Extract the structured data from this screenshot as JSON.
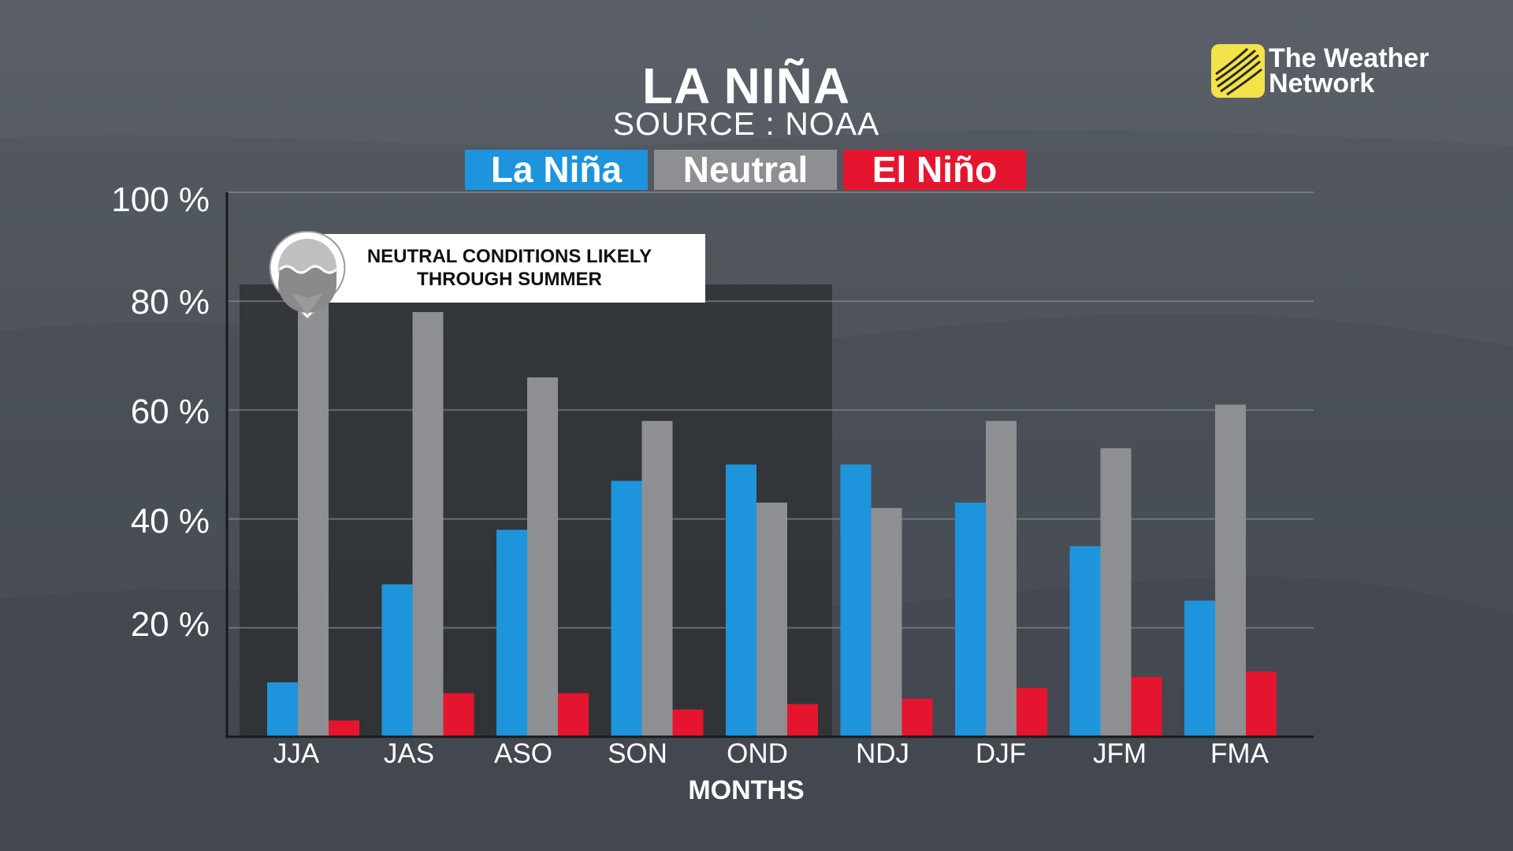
{
  "header": {
    "title": "LA NIÑA",
    "subtitle": "SOURCE : NOAA"
  },
  "legend": [
    {
      "label": "La Niña",
      "color": "#1e94dc"
    },
    {
      "label": "Neutral",
      "color": "#8e8f92"
    },
    {
      "label": "El Niño",
      "color": "#e5152f"
    }
  ],
  "callout": {
    "line1": "NEUTRAL CONDITIONS LIKELY",
    "line2": "THROUGH SUMMER",
    "icon": "water-waves-icon"
  },
  "logo": {
    "line1": "The Weather",
    "line2": "Network",
    "icon": "globe-icon",
    "color": "#f3e24a"
  },
  "chart_data": {
    "type": "bar",
    "xlabel": "MONTHS",
    "ylabel": "",
    "ylim": [
      0,
      100
    ],
    "yticks": [
      "20 %",
      "40 %",
      "60 %",
      "80 %",
      "100 %"
    ],
    "categories": [
      "JJA",
      "JAS",
      "ASO",
      "SON",
      "OND",
      "NDJ",
      "DJF",
      "JFM",
      "FMA"
    ],
    "series": [
      {
        "name": "La Niña",
        "color": "#1e94dc",
        "values": [
          10,
          28,
          38,
          47,
          50,
          50,
          43,
          35,
          25
        ]
      },
      {
        "name": "Neutral",
        "color": "#8e8f92",
        "values": [
          82,
          78,
          66,
          58,
          43,
          42,
          58,
          53,
          61
        ]
      },
      {
        "name": "El Niño",
        "color": "#e5152f",
        "values": [
          3,
          8,
          8,
          5,
          6,
          7,
          9,
          11,
          12
        ]
      }
    ],
    "highlighted_range": [
      "JJA",
      "OND"
    ],
    "grid": true,
    "legend_position": "top-center"
  }
}
